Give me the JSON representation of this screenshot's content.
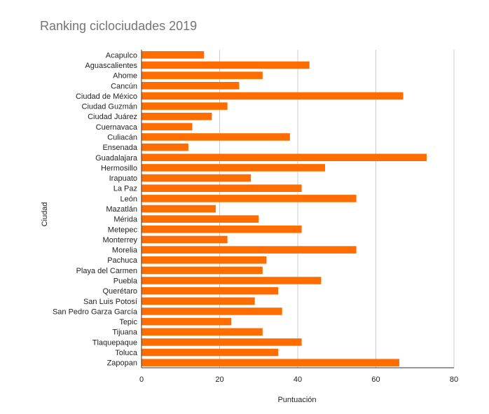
{
  "chart_data": {
    "type": "bar",
    "orientation": "horizontal",
    "title": "Ranking ciclociudades 2019",
    "xlabel": "Puntuación",
    "ylabel": "Ciudad",
    "xlim": [
      0,
      80
    ],
    "xticks": [
      0,
      20,
      40,
      60,
      80
    ],
    "grid": true,
    "bar_color": "#ff6d01",
    "categories": [
      "Acapulco",
      "Aguascalientes",
      "Ahome",
      "Cancún",
      "Ciudad de México",
      "Ciudad Guzmán",
      "Ciudad Juárez",
      "Cuernavaca",
      "Culiacán",
      "Ensenada",
      "Guadalajara",
      "Hermosillo",
      "Irapuato",
      "La Paz",
      "León",
      "Mazatlán",
      "Mérida",
      "Metepec",
      "Monterrey",
      "Morelia",
      "Pachuca",
      "Playa del Carmen",
      "Puebla",
      "Querétaro",
      "San Luis Potosí",
      "San Pedro Garza García",
      "Tepic",
      "Tijuana",
      "Tlaquepaque",
      "Toluca",
      "Zapopan"
    ],
    "series": [
      {
        "name": "Puntuación",
        "values": [
          16,
          43,
          31,
          25,
          67,
          22,
          18,
          13,
          38,
          12,
          73,
          47,
          28,
          41,
          55,
          19,
          30,
          41,
          22,
          55,
          32,
          31,
          46,
          35,
          29,
          36,
          23,
          31,
          41,
          35,
          66
        ]
      }
    ]
  }
}
